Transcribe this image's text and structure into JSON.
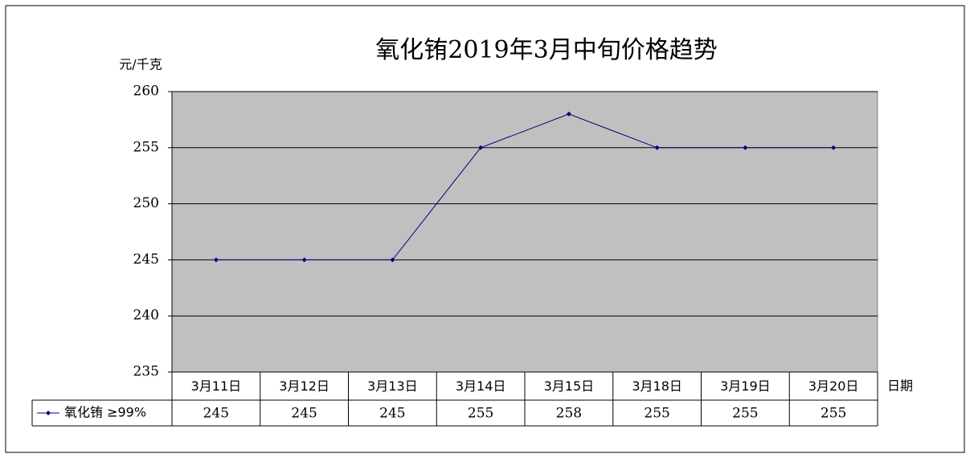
{
  "chart_data": {
    "type": "line",
    "title": "氧化铕2019年3月中旬价格趋势",
    "y_label": "元/千克",
    "x_label": "日期",
    "categories": [
      "3月11日",
      "3月12日",
      "3月13日",
      "3月14日",
      "3月15日",
      "3月18日",
      "3月19日",
      "3月20日"
    ],
    "series": [
      {
        "name": "氧化铕 ≥99%",
        "color": "#000080",
        "values": [
          245,
          245,
          245,
          255,
          258,
          255,
          255,
          255
        ]
      }
    ],
    "ylim": [
      235,
      260
    ],
    "yticks": [
      235,
      240,
      245,
      250,
      255,
      260
    ],
    "grid": true,
    "plot_background": "#c0c0c0",
    "title_color": "#ff0000"
  }
}
